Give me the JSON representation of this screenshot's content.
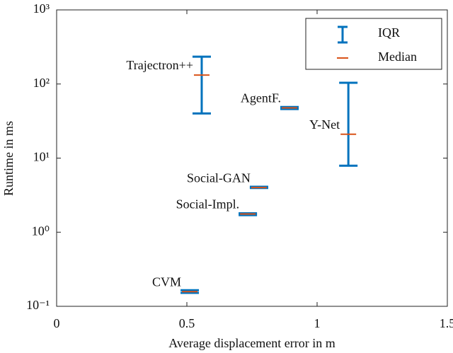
{
  "chart_data": {
    "type": "errorbar",
    "xlabel": "Average displacement error in m",
    "ylabel": "Runtime in ms",
    "x": [
      0.557,
      0.894,
      1.12,
      0.777,
      0.734,
      0.511
    ],
    "point_labels": [
      "Trajectron++",
      "AgentF.",
      "Y-Net",
      "Social-GAN",
      "Social-Impl.",
      "CVM"
    ],
    "series": [
      {
        "name": "IQR",
        "color": "#0072BD",
        "low": [
          40,
          46,
          7.9,
          3.95,
          1.7,
          0.152
        ],
        "high": [
          234,
          49,
          104,
          4.1,
          1.8,
          0.165
        ]
      },
      {
        "name": "Median",
        "color": "#D95319",
        "values": [
          132,
          47.6,
          21,
          4.0,
          1.76,
          0.158
        ]
      }
    ],
    "xlim": [
      0,
      1.5
    ],
    "xticks": [
      0,
      0.5,
      1,
      1.5
    ],
    "ylim": [
      0.1,
      1000
    ],
    "yscale": "log",
    "yticks": [
      {
        "value": 0.1,
        "label": "10⁻¹"
      },
      {
        "value": 1,
        "label": "10⁰"
      },
      {
        "value": 10,
        "label": "10¹"
      },
      {
        "value": 100,
        "label": "10²"
      },
      {
        "value": 1000,
        "label": "10³"
      }
    ],
    "legend": "top-right"
  }
}
